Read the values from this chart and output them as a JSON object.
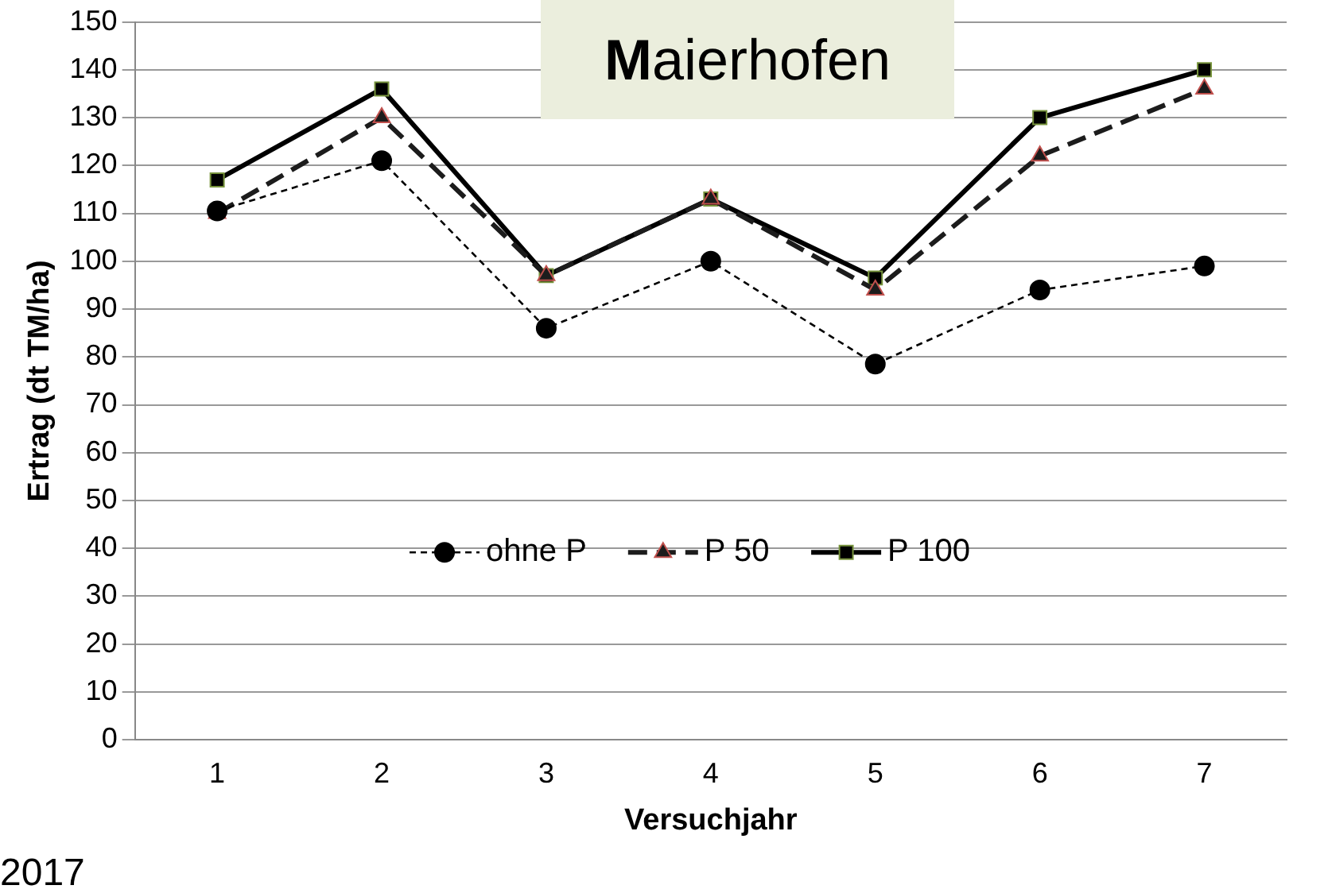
{
  "chart_data": {
    "type": "line",
    "title": "Maierhofen",
    "xlabel": "Versuchjahr",
    "ylabel": "Ertrag (dt TM/ha)",
    "categories": [
      "1",
      "2",
      "3",
      "4",
      "5",
      "6",
      "7"
    ],
    "series": [
      {
        "name": "ohne P",
        "color": "#000000",
        "marker": "circle",
        "line_style": "dotted",
        "values": [
          110.5,
          121,
          86,
          100,
          78.5,
          94,
          99
        ]
      },
      {
        "name": "P 50",
        "color": "#1c1c1c",
        "marker": "triangle",
        "line_style": "dashed",
        "values": [
          110,
          130,
          97,
          113,
          94,
          122,
          136
        ]
      },
      {
        "name": "P 100",
        "color": "#000000",
        "marker": "square",
        "line_style": "solid",
        "values": [
          117,
          136,
          97,
          113,
          96.5,
          130,
          140
        ]
      }
    ],
    "ylim": [
      0,
      150
    ],
    "yticks": [
      0,
      10,
      20,
      30,
      40,
      50,
      60,
      70,
      80,
      90,
      100,
      110,
      120,
      130,
      140,
      150
    ],
    "grid": "y",
    "legend": "bottom",
    "annotations": [
      "2017"
    ]
  }
}
